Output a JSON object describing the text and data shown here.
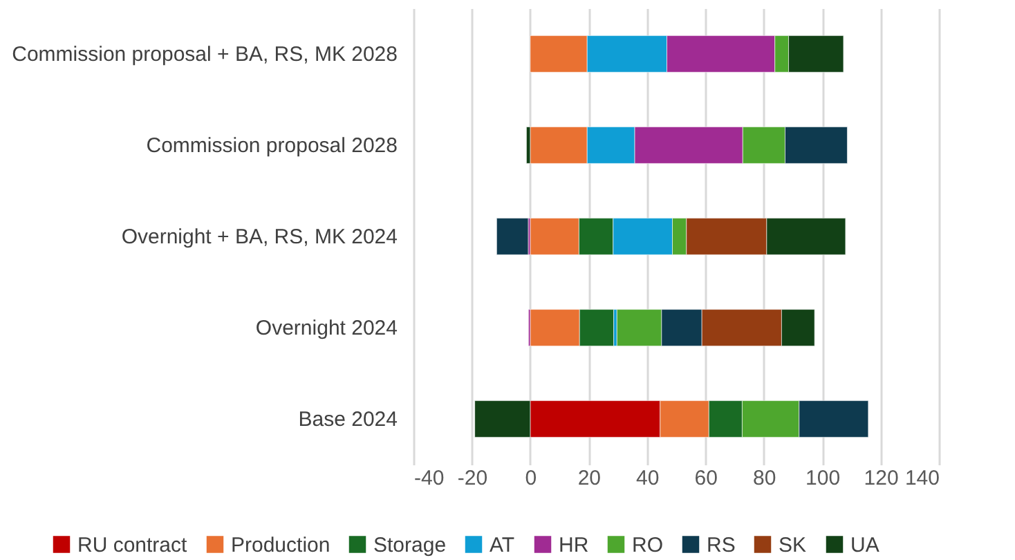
{
  "chart_data": {
    "type": "bar",
    "orientation": "horizontal",
    "stacked": true,
    "categories": [
      "Commission proposal + BA, RS, MK 2028",
      "Commission proposal 2028",
      "Overnight + BA, RS, MK 2024",
      "Overnight 2024",
      "Base 2024"
    ],
    "series": [
      {
        "name": "RU contract",
        "color": "#c00000",
        "values": [
          null,
          null,
          null,
          null,
          44.5
        ]
      },
      {
        "name": "Production",
        "color": "#e97132",
        "values": [
          19.5,
          19.5,
          16.7,
          16.9,
          16.7
        ]
      },
      {
        "name": "Storage",
        "color": "#196b24",
        "values": [
          null,
          null,
          11.7,
          11.7,
          11.4
        ]
      },
      {
        "name": "AT",
        "color": "#0f9ed5",
        "values": [
          27.3,
          16.3,
          20.3,
          1.1,
          null
        ]
      },
      {
        "name": "HR",
        "color": "#a02b93",
        "values": [
          37,
          37,
          -0.7,
          -0.6,
          null
        ]
      },
      {
        "name": "RO",
        "color": "#4ea72e",
        "values": [
          4.7,
          14.5,
          4.8,
          15.3,
          19.5
        ]
      },
      {
        "name": "RS",
        "color": "#0e3a4f",
        "values": [
          null,
          21.3,
          -10.8,
          13.8,
          23.7
        ]
      },
      {
        "name": "SK",
        "color": "#953d12",
        "values": [
          null,
          null,
          27.5,
          27.3,
          null
        ]
      },
      {
        "name": "UA",
        "color": "#124116",
        "values": [
          18.8,
          -1.3,
          27,
          11.3,
          -19
        ]
      }
    ],
    "xlim": [
      -40,
      140
    ],
    "xticks": [
      -40,
      -20,
      0,
      20,
      40,
      60,
      80,
      100,
      120,
      140
    ],
    "grid": "x",
    "legend": "bottom"
  }
}
